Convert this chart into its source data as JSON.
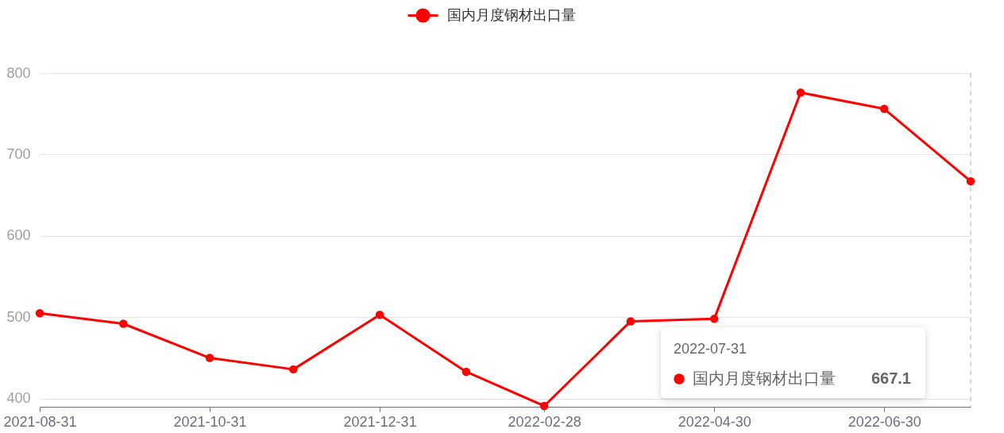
{
  "chart_data": {
    "type": "line",
    "x": [
      "2021-08-31",
      "2021-09-30",
      "2021-10-31",
      "2021-11-30",
      "2021-12-31",
      "2022-01-31",
      "2022-02-28",
      "2022-03-31",
      "2022-04-30",
      "2022-05-31",
      "2022-06-30",
      "2022-07-31"
    ],
    "series": [
      {
        "name": "国内月度钢材出口量",
        "color": "#ff0000",
        "values": [
          505,
          492,
          450,
          436,
          503,
          433,
          391,
          495,
          498,
          776,
          756,
          667.1
        ]
      }
    ],
    "xlim": [
      "2021-08-31",
      "2022-07-31"
    ],
    "xticks": [
      "2021-08-31",
      "2021-10-31",
      "2021-12-31",
      "2022-02-28",
      "2022-04-30",
      "2022-06-30"
    ],
    "ylim": [
      390,
      800
    ],
    "yticks": [
      400,
      500,
      600,
      700,
      800
    ],
    "grid": "y",
    "legend": "top",
    "marker": "circle",
    "line_style": "solid",
    "ref_lines": [
      {
        "axis": "x",
        "value": "2022-07-31",
        "color": "#b4b4b4",
        "line_style": "dashed"
      }
    ],
    "annotations": [
      "2022-07-31",
      "国内月度钢材出口量",
      "667.1"
    ]
  }
}
